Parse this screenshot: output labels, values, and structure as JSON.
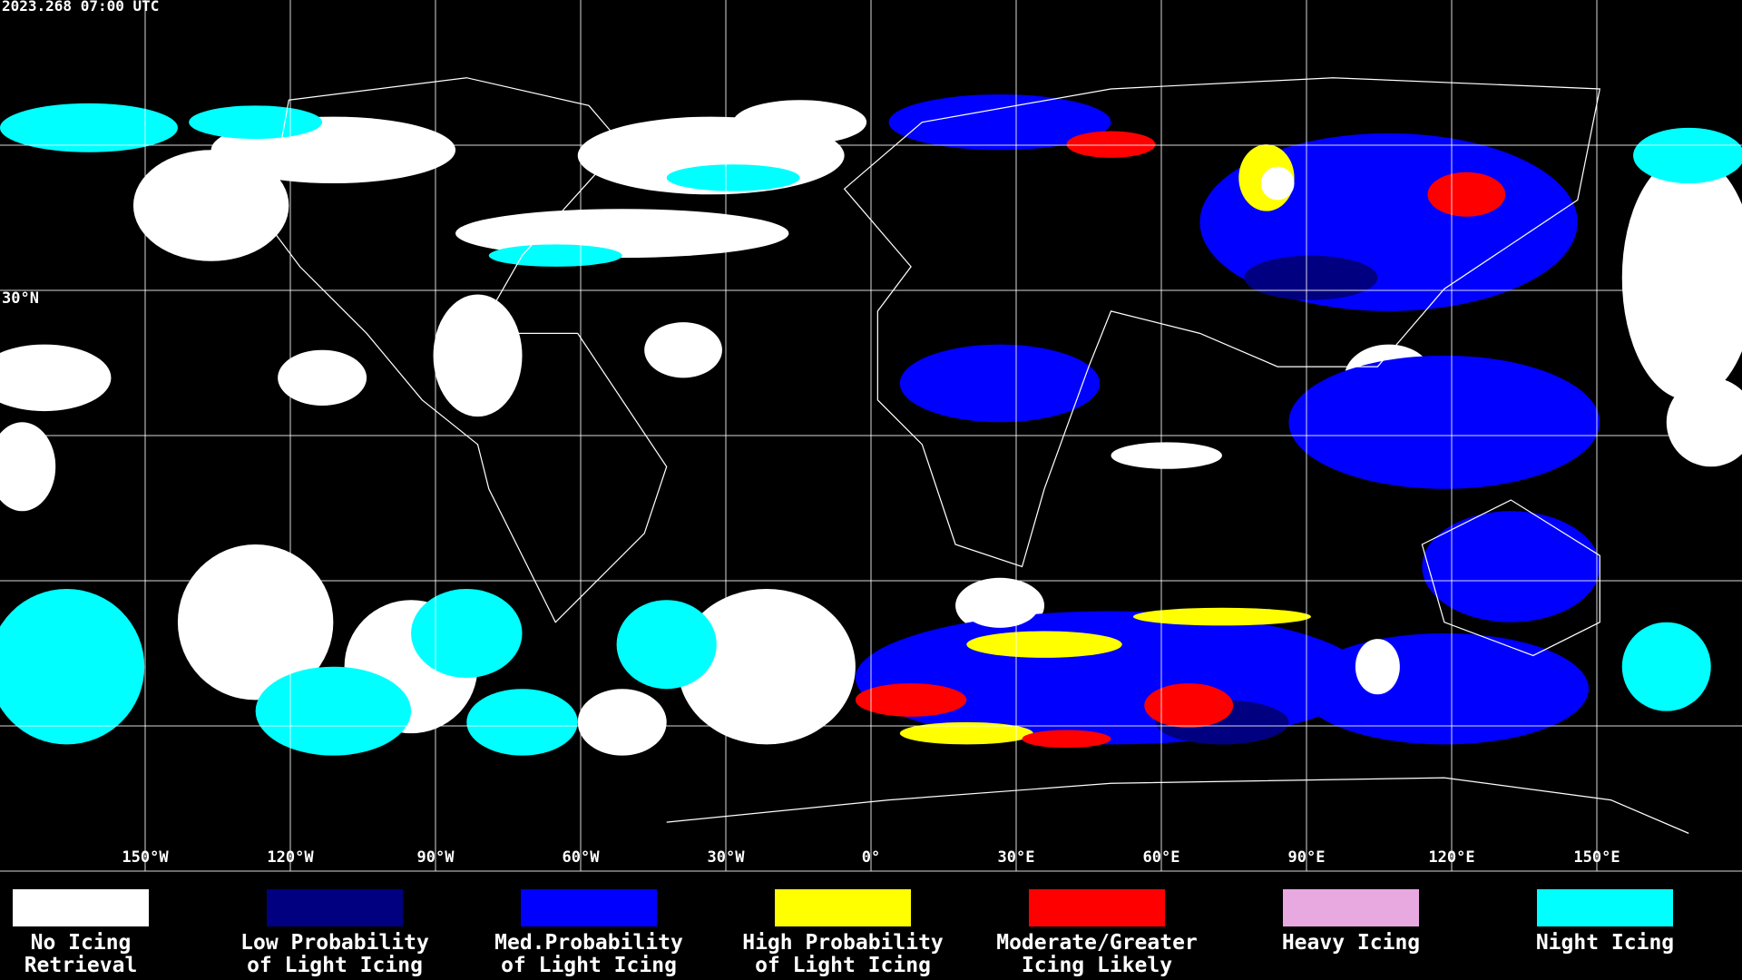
{
  "header": {
    "title": "2023.268 07:00 UTC"
  },
  "map": {
    "lon_ticks": [
      {
        "value": -150,
        "label": "150°W"
      },
      {
        "value": -120,
        "label": "120°W"
      },
      {
        "value": -90,
        "label": "90°W"
      },
      {
        "value": -60,
        "label": "60°W"
      },
      {
        "value": -30,
        "label": "30°W"
      },
      {
        "value": 0,
        "label": "0°"
      },
      {
        "value": 30,
        "label": "30°E"
      },
      {
        "value": 60,
        "label": "60°E"
      },
      {
        "value": 90,
        "label": "90°E"
      },
      {
        "value": 120,
        "label": "120°E"
      },
      {
        "value": 150,
        "label": "150°E"
      }
    ],
    "lat_gridlines": [
      60,
      30,
      0,
      -30,
      -60
    ],
    "lat_labels": [
      {
        "value": 30,
        "label": "30°N"
      }
    ]
  },
  "legend": [
    {
      "color": "#ffffff",
      "lines": [
        "No Icing",
        "Retrieval"
      ]
    },
    {
      "color": "#000080",
      "lines": [
        "Low Probability",
        "of Light Icing"
      ]
    },
    {
      "color": "#0000ff",
      "lines": [
        "Med.Probability",
        "of Light Icing"
      ]
    },
    {
      "color": "#ffff00",
      "lines": [
        "High Probability",
        "of Light Icing"
      ]
    },
    {
      "color": "#ff0000",
      "lines": [
        "Moderate/Greater",
        "Icing Likely"
      ]
    },
    {
      "color": "#e8a8e0",
      "lines": [
        "Heavy Icing"
      ]
    },
    {
      "color": "#00ffff",
      "lines": [
        "Night Icing"
      ]
    }
  ]
}
